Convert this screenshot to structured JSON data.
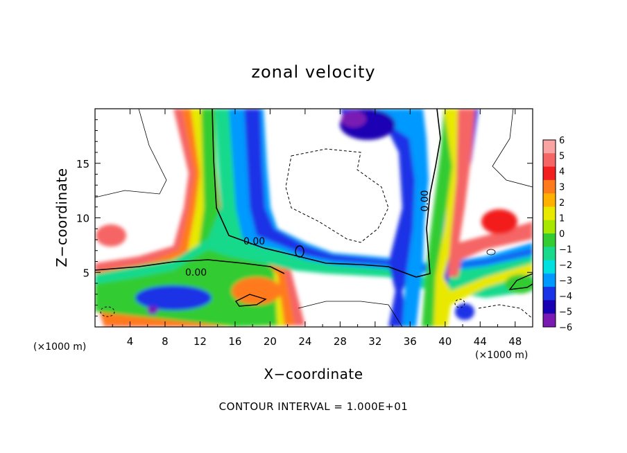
{
  "chart_data": {
    "type": "heatmap",
    "title": "zonal velocity",
    "xlabel": "X−coordinate",
    "ylabel": "Z−coordinate",
    "x_unit_label": "(×1000 m)",
    "z_unit_label": "(×1000 m)",
    "xlim": [
      0,
      50
    ],
    "ylim": [
      0,
      20
    ],
    "x_ticks": [
      4,
      8,
      12,
      16,
      20,
      24,
      28,
      32,
      36,
      40,
      44,
      48
    ],
    "y_ticks": [
      5,
      10,
      15
    ],
    "colorbar": {
      "ticks": [
        6,
        5,
        4,
        3,
        2,
        1,
        0,
        -1,
        -2,
        -3,
        -4,
        -5,
        -6
      ],
      "colors": [
        "#f9a3a3",
        "#f56565",
        "#f21f1f",
        "#ff7a1a",
        "#ffb000",
        "#e8e800",
        "#a8e800",
        "#33cc33",
        "#19d98c",
        "#00e0e0",
        "#0099ff",
        "#1a33e6",
        "#1a00b3",
        "#7a1ab3"
      ]
    },
    "contour_labels": [
      {
        "text": "0.00"
      },
      {
        "text": "0.00"
      },
      {
        "text": "0.00"
      }
    ],
    "contour_interval": "CONTOUR INTERVAL = 1.000E+01"
  }
}
